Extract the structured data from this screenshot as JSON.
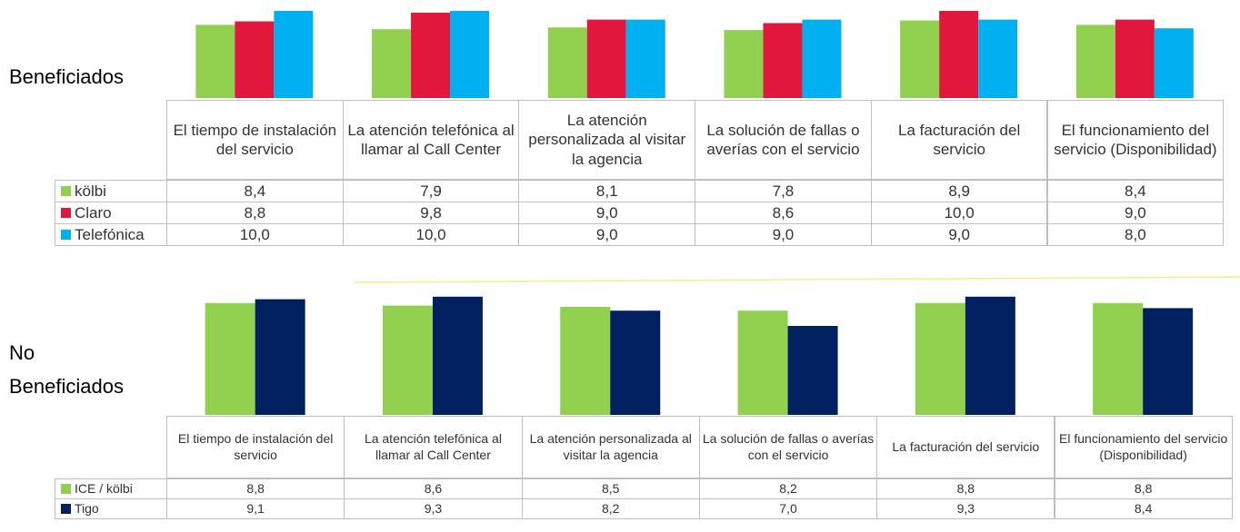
{
  "chart_data": [
    {
      "type": "bar",
      "title": "Beneficiados",
      "categories": [
        "El tiempo de instalación del servicio",
        "La atención telefónica al llamar al Call Center",
        "La atención personalizada al visitar la agencia",
        "La solución de fallas o averías con el servicio",
        "La facturación del servicio",
        "El funcionamiento del servicio (Disponibilidad)"
      ],
      "series": [
        {
          "name": "kölbi",
          "color": "#92d050",
          "values": [
            8.4,
            7.9,
            8.1,
            7.8,
            8.9,
            8.4
          ],
          "value_labels": [
            "8,4",
            "7,9",
            "8,1",
            "7,8",
            "8,9",
            "8,4"
          ]
        },
        {
          "name": "Claro",
          "color": "#e2173d",
          "values": [
            8.8,
            9.8,
            9.0,
            8.6,
            10.0,
            9.0
          ],
          "value_labels": [
            "8,8",
            "9,8",
            "9,0",
            "8,6",
            "10,0",
            "9,0"
          ]
        },
        {
          "name": "Telefónica",
          "color": "#00b0f0",
          "values": [
            10.0,
            10.0,
            9.0,
            9.0,
            9.0,
            8.0
          ],
          "value_labels": [
            "10,0",
            "10,0",
            "9,0",
            "9,0",
            "9,0",
            "8,0"
          ]
        }
      ],
      "ylim": [
        0,
        10
      ]
    },
    {
      "type": "bar",
      "title": "No Beneficiados",
      "categories": [
        "El tiempo de instalación del servicio",
        "La atención telefónica al llamar al Call Center",
        "La atención personalizada al visitar la agencia",
        "La solución de fallas o averías con el servicio",
        "La facturación del servicio",
        "El funcionamiento del servicio (Disponibilidad)"
      ],
      "series": [
        {
          "name": "ICE / kölbi",
          "color": "#92d050",
          "values": [
            8.8,
            8.6,
            8.5,
            8.2,
            8.8,
            8.8
          ],
          "value_labels": [
            "8,8",
            "8,6",
            "8,5",
            "8,2",
            "8,8",
            "8,8"
          ]
        },
        {
          "name": "Tigo",
          "color": "#002060",
          "values": [
            9.1,
            9.3,
            8.2,
            7.0,
            9.3,
            8.4
          ],
          "value_labels": [
            "9,1",
            "9,3",
            "8,2",
            "7,0",
            "9,3",
            "8,4"
          ]
        }
      ],
      "ylim": [
        0,
        10
      ]
    }
  ]
}
